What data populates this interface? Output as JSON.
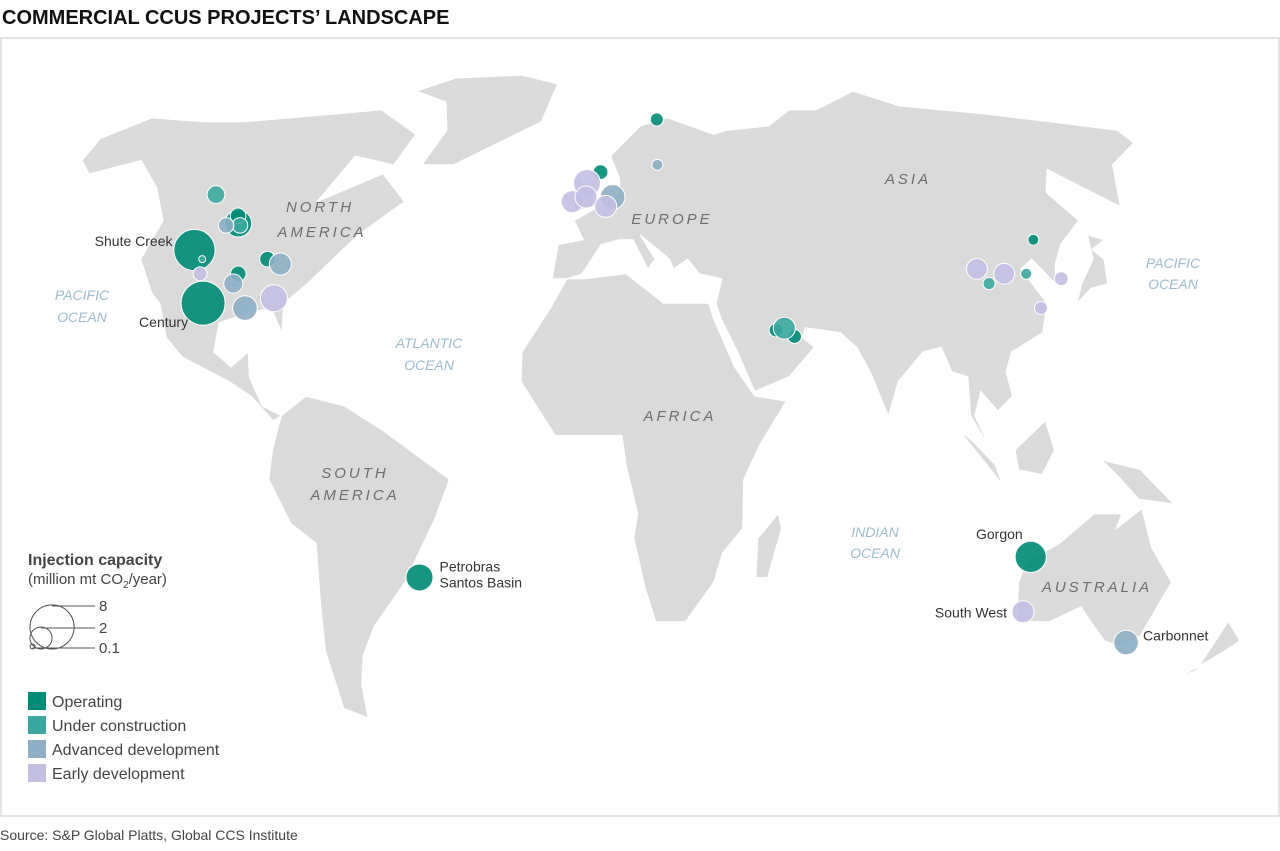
{
  "title": "COMMERCIAL CCUS PROJECTS’ LANDSCAPE",
  "source": "Source: S&P Global Platts, Global CCS Institute",
  "regions": [
    "NORTH",
    "AMERICA",
    "SOUTH",
    "AMERICA",
    "EUROPE",
    "ASIA",
    "AFRICA",
    "AUSTRALIA"
  ],
  "oceans": [
    "PACIFIC",
    "OCEAN",
    "ATLANTIC",
    "OCEAN",
    "INDIAN",
    "OCEAN",
    "PACIFIC",
    "OCEAN"
  ],
  "size_legend": {
    "title": "Injection capacity",
    "subtitle_parts": [
      "(million mt CO",
      "2",
      "/year)"
    ],
    "values": [
      8,
      2,
      0.1
    ]
  },
  "stages": [
    {
      "name": "Operating",
      "color": "#008b76",
      "projects": [
        {
          "lon": -110.4,
          "lat": 41.9,
          "capacity": 7,
          "label": [
            "Shute Creek"
          ]
        },
        {
          "lon": -102.5,
          "lat": 31.0,
          "capacity": 8,
          "label": [
            "Century"
          ]
        },
        {
          "lon": -101.8,
          "lat": 47.4,
          "capacity": 3
        },
        {
          "lon": -103,
          "lat": 49,
          "capacity": 1
        },
        {
          "lon": -89,
          "lat": 40,
          "capacity": 1
        },
        {
          "lon": -95.6,
          "lat": 37,
          "capacity": 1
        },
        {
          "lon": -44,
          "lat": -25,
          "capacity": 3,
          "label": [
            "Petrobras",
            "Santos Basin"
          ]
        },
        {
          "lon": 115,
          "lat": -20.8,
          "capacity": 4,
          "label": [
            "Gorgon"
          ]
        },
        {
          "lon": 2,
          "lat": 58.4,
          "capacity": 0.9
        },
        {
          "lon": 21,
          "lat": 70.6,
          "capacity": 0.7
        },
        {
          "lon": 49.3,
          "lat": 25.5,
          "capacity": 0.8
        },
        {
          "lon": 54,
          "lat": 24.2,
          "capacity": 0.8
        },
        {
          "lon": 125,
          "lat": 44,
          "capacity": 0.5
        }
      ]
    },
    {
      "name": "Under construction",
      "color": "#3ca7a0",
      "projects": [
        {
          "lon": -113.5,
          "lat": 53.5,
          "capacity": 1.3
        },
        {
          "lon": -101,
          "lat": 47,
          "capacity": 1
        },
        {
          "lon": 51.5,
          "lat": 25.9,
          "capacity": 2
        },
        {
          "lon": 108,
          "lat": 35,
          "capacity": 0.6
        },
        {
          "lon": 119,
          "lat": 37,
          "capacity": 0.5
        },
        {
          "lon": -107,
          "lat": 40,
          "capacity": 0.2
        }
      ]
    },
    {
      "name": "Advanced development",
      "color": "#8daec4",
      "projects": [
        {
          "lon": -85,
          "lat": 39,
          "capacity": 2
        },
        {
          "lon": -96,
          "lat": 35,
          "capacity": 1.5
        },
        {
          "lon": -91,
          "lat": 30,
          "capacity": 2.5
        },
        {
          "lon": 6,
          "lat": 53,
          "capacity": 2.5
        },
        {
          "lon": 147,
          "lat": -38.3,
          "capacity": 2.5,
          "label": [
            "Carbonnet"
          ]
        },
        {
          "lon": 20,
          "lat": 60,
          "capacity": 0.5
        },
        {
          "lon": -105,
          "lat": 47,
          "capacity": 1
        }
      ]
    },
    {
      "name": "Early development",
      "color": "#c2bfe3",
      "projects": [
        {
          "lon": -2,
          "lat": 56,
          "capacity": 3
        },
        {
          "lon": -6,
          "lat": 52,
          "capacity": 2
        },
        {
          "lon": 4,
          "lat": 51,
          "capacity": 2
        },
        {
          "lon": -84,
          "lat": 32,
          "capacity": 3
        },
        {
          "lon": -106,
          "lat": 37,
          "capacity": 0.8
        },
        {
          "lon": 106,
          "lat": 38,
          "capacity": 1.8
        },
        {
          "lon": 113,
          "lat": 37,
          "capacity": 1.8
        },
        {
          "lon": 128,
          "lat": 36,
          "capacity": 0.8
        },
        {
          "lon": 120,
          "lat": 30,
          "capacity": 0.7
        },
        {
          "lon": 116,
          "lat": -32,
          "capacity": 2,
          "label": [
            "South West"
          ]
        },
        {
          "lon": -2,
          "lat": 53,
          "capacity": 2
        }
      ]
    }
  ]
}
